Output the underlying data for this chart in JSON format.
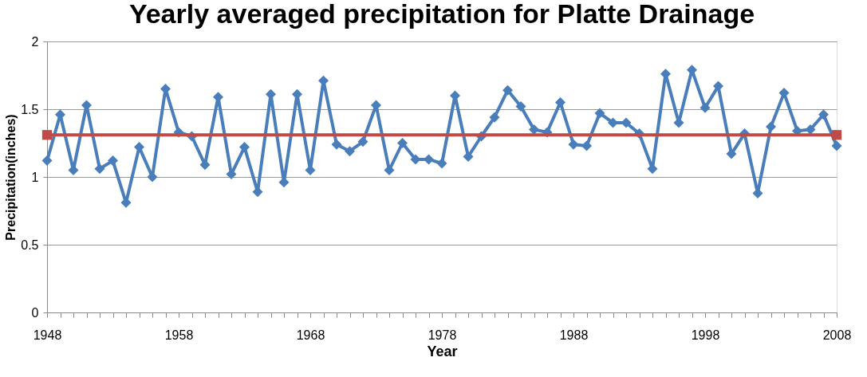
{
  "chart_data": {
    "type": "line",
    "title": "Yearly averaged precipitation for Platte Drainage",
    "xlabel": "Year",
    "ylabel": "Precipitation(inches)",
    "x": [
      1948,
      1949,
      1950,
      1951,
      1952,
      1953,
      1954,
      1955,
      1956,
      1957,
      1958,
      1959,
      1960,
      1961,
      1962,
      1963,
      1964,
      1965,
      1966,
      1967,
      1968,
      1969,
      1970,
      1971,
      1972,
      1973,
      1974,
      1975,
      1976,
      1977,
      1978,
      1979,
      1980,
      1981,
      1982,
      1983,
      1984,
      1985,
      1986,
      1987,
      1988,
      1989,
      1990,
      1991,
      1992,
      1993,
      1994,
      1995,
      1996,
      1997,
      1998,
      1999,
      2000,
      2001,
      2002,
      2003,
      2004,
      2005,
      2006,
      2007,
      2008
    ],
    "series": [
      {
        "color": "#4a7ebb",
        "marker": "diamond",
        "values": [
          1.12,
          1.46,
          1.05,
          1.53,
          1.06,
          1.12,
          0.81,
          1.22,
          1.0,
          1.65,
          1.33,
          1.3,
          1.09,
          1.59,
          1.02,
          1.22,
          0.89,
          1.61,
          0.96,
          1.61,
          1.05,
          1.71,
          1.24,
          1.19,
          1.26,
          1.53,
          1.05,
          1.25,
          1.13,
          1.13,
          1.1,
          1.6,
          1.15,
          1.3,
          1.44,
          1.64,
          1.52,
          1.35,
          1.33,
          1.55,
          1.24,
          1.23,
          1.47,
          1.4,
          1.4,
          1.32,
          1.06,
          1.76,
          1.4,
          1.79,
          1.51,
          1.67,
          1.17,
          1.32,
          0.88,
          1.37,
          1.62,
          1.34,
          1.35,
          1.46,
          1.23
        ]
      },
      {
        "color": "#be4b48",
        "marker": "square",
        "x": [
          1948,
          2008
        ],
        "values": [
          1.31,
          1.31
        ]
      }
    ],
    "xlim": [
      1948,
      2008
    ],
    "xticks": [
      1948,
      {
        "value": 1949,
        "label": null
      },
      {
        "value": 1950,
        "label": null
      },
      {
        "value": 1951,
        "label": null
      },
      {
        "value": 1952,
        "label": null
      },
      {
        "value": 1953,
        "label": null
      },
      {
        "value": 1954,
        "label": null
      },
      {
        "value": 1955,
        "label": null
      },
      {
        "value": 1956,
        "label": null
      },
      {
        "value": 1957,
        "label": null
      },
      1958,
      {
        "value": 1959,
        "label": null
      },
      {
        "value": 1960,
        "label": null
      },
      {
        "value": 1961,
        "label": null
      },
      {
        "value": 1962,
        "label": null
      },
      {
        "value": 1963,
        "label": null
      },
      {
        "value": 1964,
        "label": null
      },
      {
        "value": 1965,
        "label": null
      },
      {
        "value": 1966,
        "label": null
      },
      {
        "value": 1967,
        "label": null
      },
      1968,
      {
        "value": 1969,
        "label": null
      },
      {
        "value": 1970,
        "label": null
      },
      {
        "value": 1971,
        "label": null
      },
      {
        "value": 1972,
        "label": null
      },
      {
        "value": 1973,
        "label": null
      },
      {
        "value": 1974,
        "label": null
      },
      {
        "value": 1975,
        "label": null
      },
      {
        "value": 1976,
        "label": null
      },
      {
        "value": 1977,
        "label": null
      },
      1978,
      {
        "value": 1979,
        "label": null
      },
      {
        "value": 1980,
        "label": null
      },
      {
        "value": 1981,
        "label": null
      },
      {
        "value": 1982,
        "label": null
      },
      {
        "value": 1983,
        "label": null
      },
      {
        "value": 1984,
        "label": null
      },
      {
        "value": 1985,
        "label": null
      },
      {
        "value": 1986,
        "label": null
      },
      {
        "value": 1987,
        "label": null
      },
      1988,
      {
        "value": 1989,
        "label": null
      },
      {
        "value": 1990,
        "label": null
      },
      {
        "value": 1991,
        "label": null
      },
      {
        "value": 1992,
        "label": null
      },
      {
        "value": 1993,
        "label": null
      },
      {
        "value": 1994,
        "label": null
      },
      {
        "value": 1995,
        "label": null
      },
      {
        "value": 1996,
        "label": null
      },
      {
        "value": 1997,
        "label": null
      },
      1998,
      {
        "value": 1999,
        "label": null
      },
      {
        "value": 2000,
        "label": null
      },
      {
        "value": 2001,
        "label": null
      },
      {
        "value": 2002,
        "label": null
      },
      {
        "value": 2003,
        "label": null
      },
      {
        "value": 2004,
        "label": null
      },
      {
        "value": 2005,
        "label": null
      },
      {
        "value": 2006,
        "label": null
      },
      {
        "value": 2007,
        "label": null
      },
      2008
    ],
    "ylim": [
      0,
      2
    ],
    "yticks": [
      0,
      0.5,
      1,
      1.5,
      2
    ],
    "grid": "y",
    "line_style": "solid"
  }
}
